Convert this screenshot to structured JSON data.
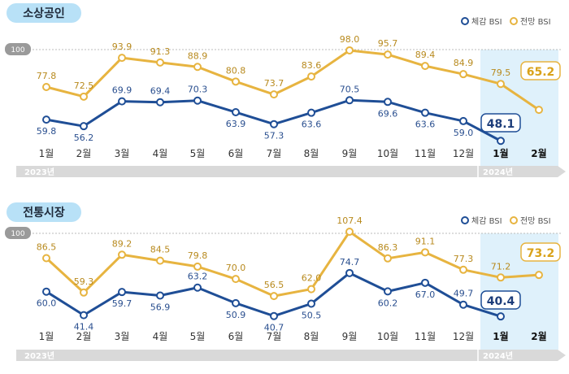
{
  "legend": {
    "current": "체감 BSI",
    "forecast": "전망 BSI"
  },
  "colors": {
    "current": "#1f4e96",
    "forecast": "#e7b440",
    "highlight": "#dff1fb",
    "timeline": "#d9d9d9"
  },
  "chart_data": [
    {
      "type": "line",
      "title": "소상공인",
      "reference_label": "100",
      "categories": [
        "1월",
        "2월",
        "3월",
        "4월",
        "5월",
        "6월",
        "7월",
        "8월",
        "9월",
        "10월",
        "11월",
        "12월",
        "1월",
        "2월"
      ],
      "years": [
        "2023년",
        "2024년"
      ],
      "series": [
        {
          "name": "체감 BSI",
          "values": [
            59.8,
            56.2,
            69.9,
            69.4,
            70.3,
            63.9,
            57.3,
            63.6,
            70.5,
            69.6,
            63.6,
            59.0,
            48.1,
            null
          ]
        },
        {
          "name": "전망 BSI",
          "values": [
            77.8,
            72.5,
            93.9,
            91.3,
            88.9,
            80.8,
            73.7,
            83.6,
            98.0,
            95.7,
            89.4,
            84.9,
            79.5,
            65.2
          ]
        }
      ],
      "value_labels": {
        "current": [
          "59.8",
          "56.2",
          "69.9",
          "69.4",
          "70.3",
          "63.9",
          "57.3",
          "63.6",
          "70.5",
          "69.6",
          "63.6",
          "59.0",
          "48.1",
          ""
        ],
        "forecast": [
          "77.8",
          "72.5",
          "93.9",
          "91.3",
          "88.9",
          "80.8",
          "73.7",
          "83.6",
          "98.0",
          "95.7",
          "89.4",
          "84.9",
          "79.5",
          "65.2"
        ]
      },
      "ylim": [
        40,
        100
      ]
    },
    {
      "type": "line",
      "title": "전통시장",
      "reference_label": "100",
      "categories": [
        "1월",
        "2월",
        "3월",
        "4월",
        "5월",
        "6월",
        "7월",
        "8월",
        "9월",
        "10월",
        "11월",
        "12월",
        "1월",
        "2월"
      ],
      "years": [
        "2023년",
        "2024년"
      ],
      "series": [
        {
          "name": "체감 BSI",
          "values": [
            60.0,
            41.4,
            59.7,
            56.9,
            63.2,
            50.9,
            40.7,
            50.5,
            74.7,
            60.2,
            67.0,
            49.7,
            40.4,
            null
          ]
        },
        {
          "name": "전망 BSI",
          "values": [
            86.5,
            59.3,
            89.2,
            84.5,
            79.8,
            70.0,
            56.5,
            62.0,
            107.4,
            86.3,
            91.1,
            77.3,
            71.2,
            73.2
          ]
        }
      ],
      "value_labels": {
        "current": [
          "60.0",
          "41.4",
          "59.7",
          "56.9",
          "63.2",
          "50.9",
          "40.7",
          "50.5",
          "74.7",
          "60.2",
          "67.0",
          "49.7",
          "40.4",
          ""
        ],
        "forecast": [
          "86.5",
          "59.3",
          "89.2",
          "84.5",
          "79.8",
          "70.0",
          "56.5",
          "62.0",
          "107.4",
          "86.3",
          "91.1",
          "77.3",
          "71.2",
          "73.2"
        ]
      },
      "ylim": [
        30,
        110
      ]
    }
  ]
}
